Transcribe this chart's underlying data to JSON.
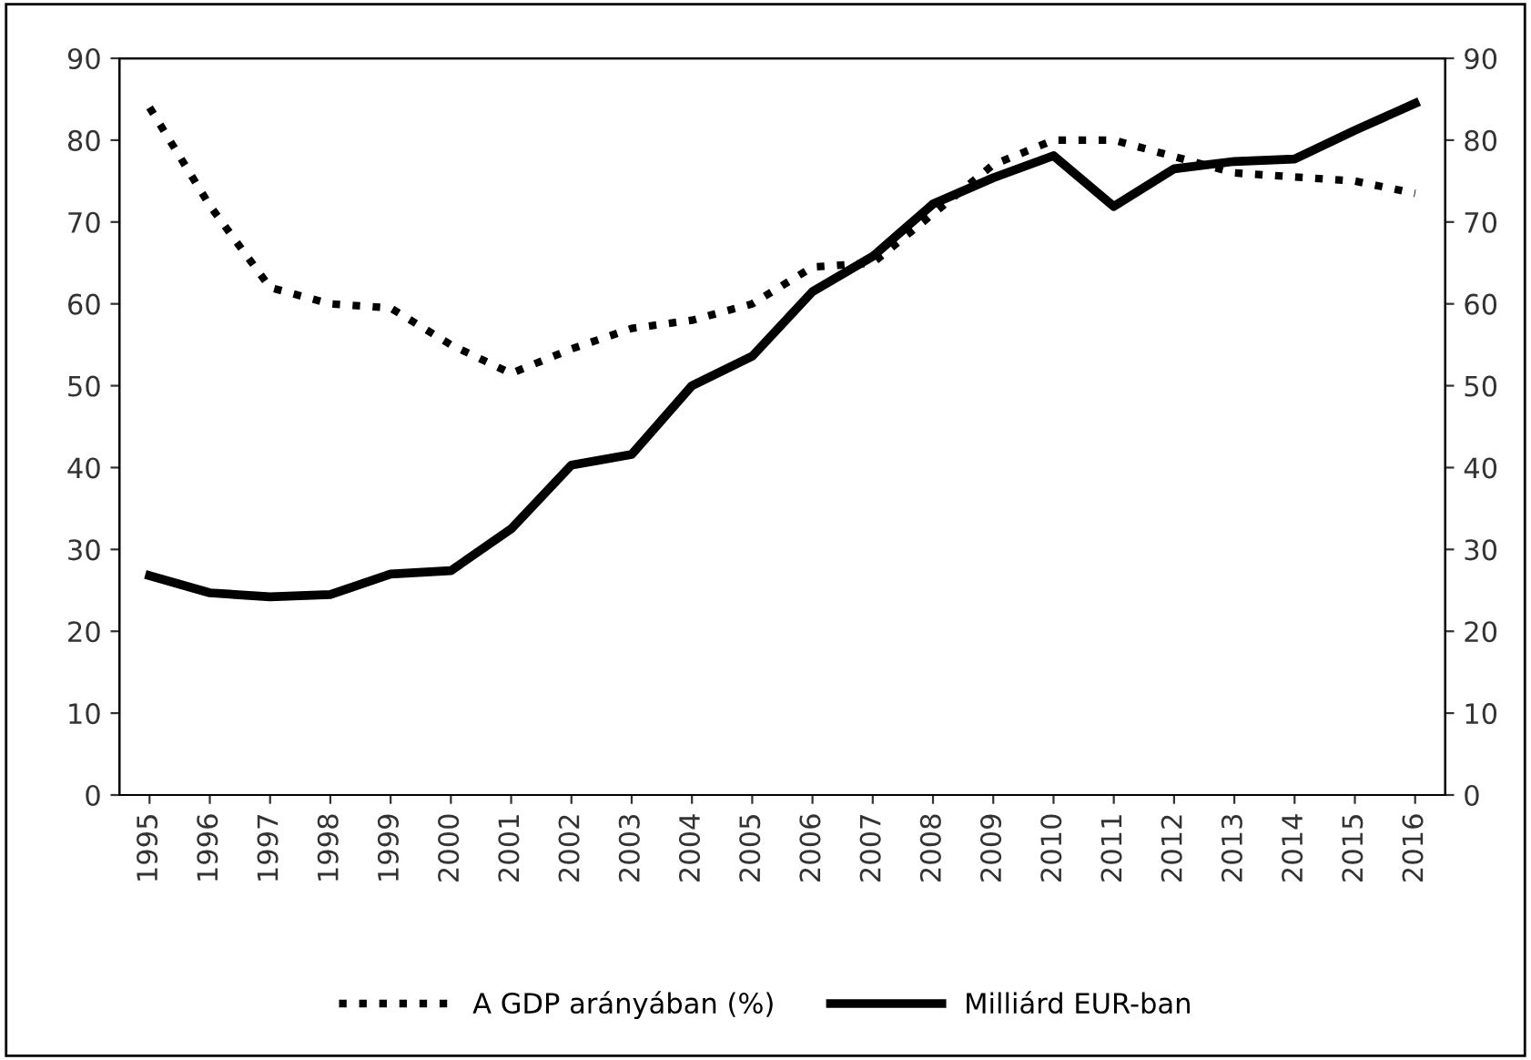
{
  "chart_data": {
    "type": "line",
    "categories": [
      "1995",
      "1996",
      "1997",
      "1998",
      "1999",
      "2000",
      "2001",
      "2002",
      "2003",
      "2004",
      "2005",
      "2006",
      "2007",
      "2008",
      "2009",
      "2010",
      "2011",
      "2012",
      "2013",
      "2014",
      "2015",
      "2016"
    ],
    "series": [
      {
        "name": "A GDP arányában (%)",
        "color": "#000000",
        "line_style": "dotted",
        "values": [
          84,
          72,
          62,
          60,
          59.5,
          55,
          51.5,
          54.5,
          57,
          58,
          60,
          64.5,
          65,
          71,
          77,
          80,
          80,
          78,
          76,
          75.5,
          75,
          73.5
        ]
      },
      {
        "name": "Milliárd EUR-ban",
        "color": "#000000",
        "line_style": "solid",
        "values": [
          26.8,
          24.7,
          24.2,
          24.5,
          27,
          27.4,
          32.5,
          40.3,
          41.6,
          50,
          53.6,
          61.5,
          65.8,
          72.2,
          75.4,
          78.1,
          71.9,
          76.5,
          77.4,
          77.7,
          81.2,
          84.5
        ]
      }
    ],
    "ylim": [
      0,
      90
    ],
    "yticks": [
      0,
      10,
      20,
      30,
      40,
      50,
      60,
      70,
      80,
      90
    ],
    "y2lim": [
      0,
      90
    ],
    "y2ticks": [
      0,
      10,
      20,
      30,
      40,
      50,
      60,
      70,
      80,
      90
    ],
    "grid": false,
    "legend": "bottom",
    "marker": "none"
  }
}
